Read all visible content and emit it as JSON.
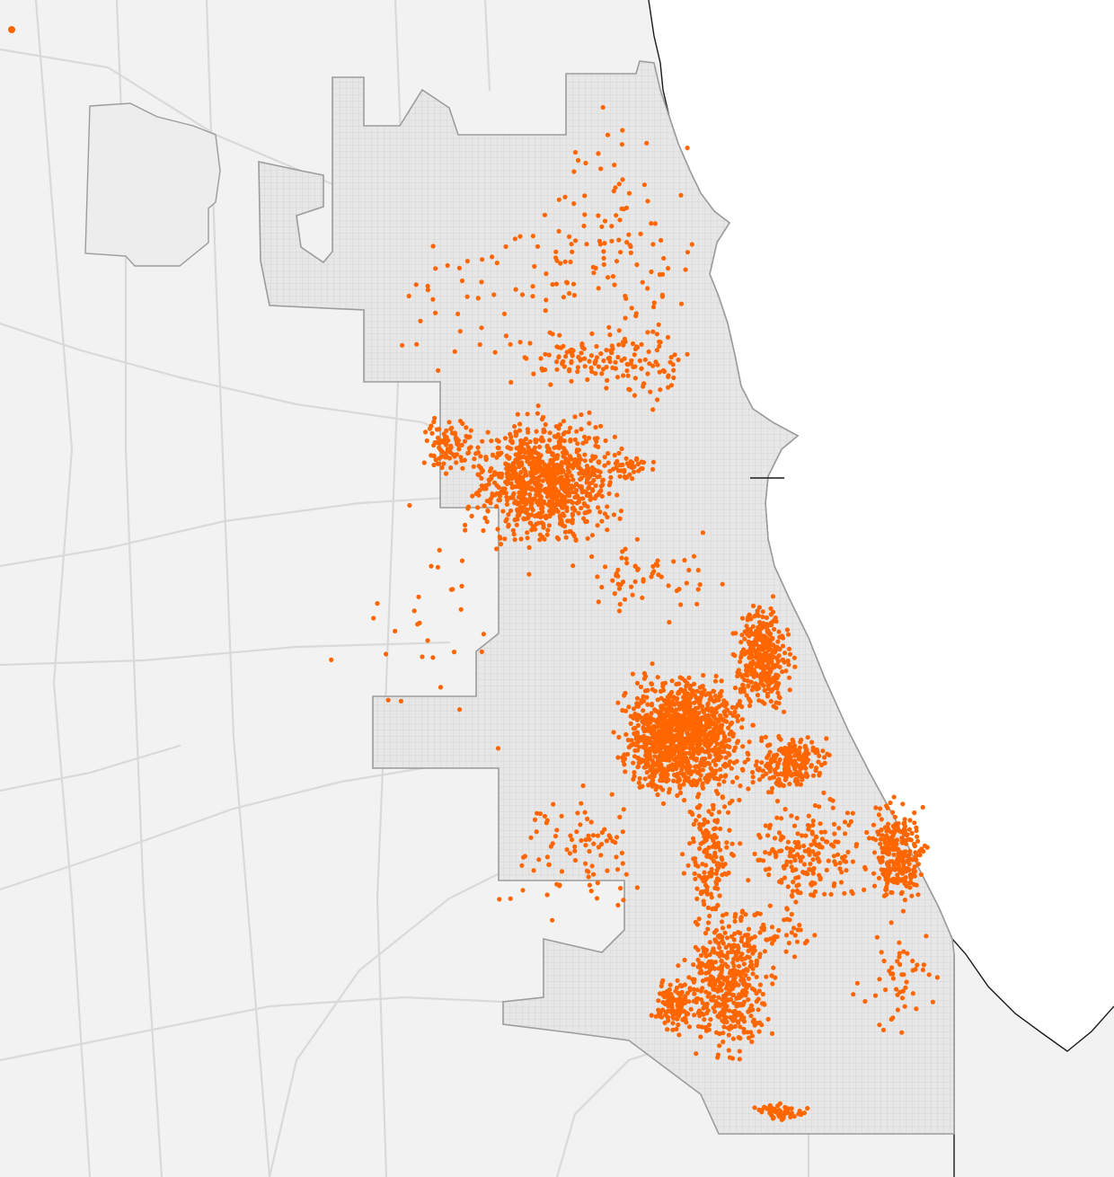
{
  "map": {
    "colors": {
      "land": "#f2f2f2",
      "lake": "#ffffff",
      "city_fill": "#e7e7e7",
      "city_outline": "#9c9c9c",
      "street_grid": "#d4d4d4",
      "highway": "#d9d9d9",
      "shoreline": "#1a1a1a",
      "point": "#ff6600"
    },
    "point_style": "orange dots clustered on the west side and south side of the city"
  }
}
